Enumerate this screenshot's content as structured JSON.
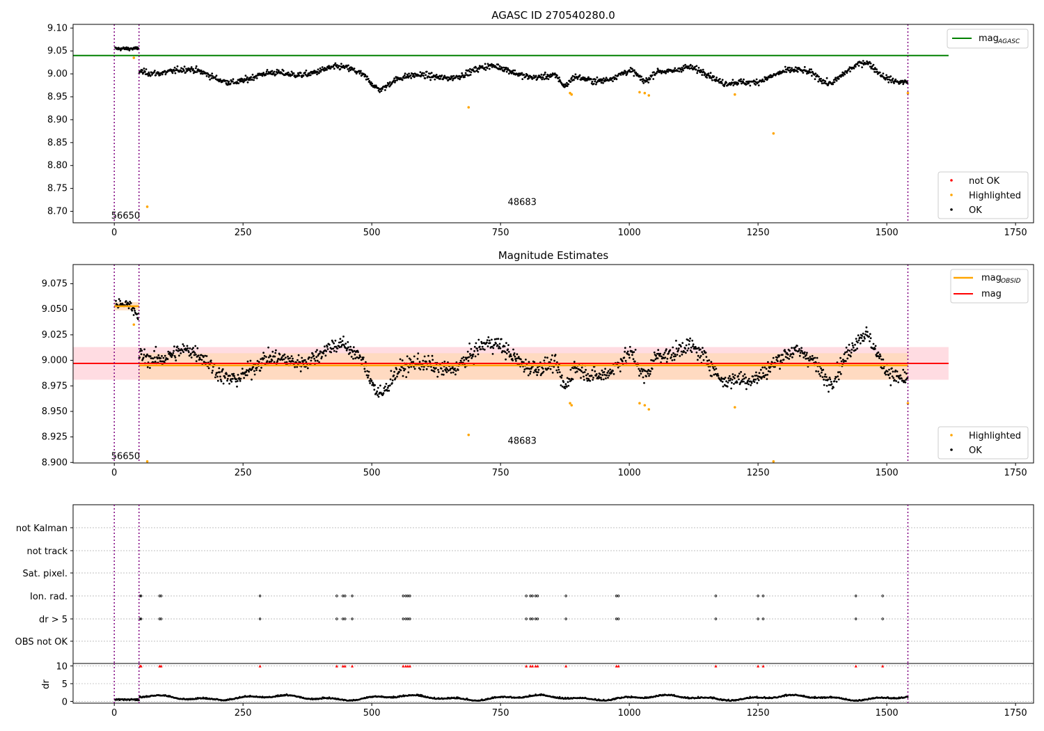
{
  "figure_title": "AGASC ID 270540280.0",
  "colors": {
    "agasc_line": "#008000",
    "obsid_line": "#ffa500",
    "mag_line": "#ff0000",
    "highlight": "#ffa500",
    "not_ok": "#ff0000",
    "ok": "#000000",
    "obs_boundary": "#800080",
    "mag_band": "#ffc0cb",
    "obsid_band": "#ffdab9"
  },
  "chart_data": [
    {
      "id": "agasc",
      "type": "scatter",
      "title": "AGASC ID 270540280.0",
      "xlim": [
        -80,
        1785
      ],
      "ylim": [
        8.675,
        9.108
      ],
      "xticks": [
        0,
        250,
        500,
        750,
        1000,
        1250,
        1500,
        1750
      ],
      "yticks": [
        8.7,
        8.75,
        8.8,
        8.85,
        8.9,
        8.95,
        9.0,
        9.05,
        9.1
      ],
      "ytick_labels": [
        "8.70",
        "8.75",
        "8.80",
        "8.85",
        "8.90",
        "8.95",
        "9.00",
        "9.05",
        "9.10"
      ],
      "obs_boundaries": [
        0,
        48,
        1541
      ],
      "obs_labels": [
        {
          "text": "56650",
          "x": 22,
          "y": 8.69
        },
        {
          "text": "48683",
          "x": 792,
          "y": 8.72
        }
      ],
      "agasc_line": {
        "y": 9.04,
        "x": [
          -80,
          1620
        ]
      },
      "highlighted": [
        [
          38,
          9.035
        ],
        [
          64,
          8.71
        ],
        [
          688,
          8.927
        ],
        [
          885,
          8.958
        ],
        [
          888,
          8.955
        ],
        [
          1020,
          8.96
        ],
        [
          1030,
          8.958
        ],
        [
          1038,
          8.953
        ],
        [
          1205,
          8.955
        ],
        [
          1280,
          8.87
        ],
        [
          1541,
          8.958
        ]
      ],
      "legend_top": [
        {
          "label": "mag",
          "sub": "AGASC"
        }
      ],
      "legend_bottom": [
        {
          "label": "not OK"
        },
        {
          "label": "Highlighted"
        },
        {
          "label": "OK"
        }
      ]
    },
    {
      "id": "mag",
      "type": "scatter",
      "title": "Magnitude Estimates",
      "xlim": [
        -80,
        1785
      ],
      "ylim": [
        8.8995,
        9.0938
      ],
      "xticks": [
        0,
        250,
        500,
        750,
        1000,
        1250,
        1500,
        1750
      ],
      "yticks": [
        8.9,
        8.925,
        8.95,
        8.975,
        9.0,
        9.025,
        9.05,
        9.075
      ],
      "ytick_labels": [
        "8.900",
        "8.925",
        "8.950",
        "8.975",
        "9.000",
        "9.025",
        "9.050",
        "9.075"
      ],
      "obs_boundaries": [
        0,
        48,
        1541
      ],
      "obs_labels": [
        {
          "text": "56650",
          "x": 22,
          "y": 8.906
        },
        {
          "text": "48683",
          "x": 792,
          "y": 8.921
        }
      ],
      "mag_line": {
        "y": 8.997,
        "x": [
          -80,
          1620
        ],
        "band": [
          8.981,
          9.013
        ]
      },
      "obsid_segments": [
        {
          "x": [
            0,
            48
          ],
          "y": 9.053,
          "band": [
            9.049,
            9.057
          ]
        },
        {
          "x": [
            48,
            1541
          ],
          "y": 8.995,
          "band": [
            8.981,
            9.007
          ]
        }
      ],
      "highlighted": [
        [
          38,
          9.035
        ],
        [
          64,
          8.901
        ],
        [
          688,
          8.927
        ],
        [
          885,
          8.958
        ],
        [
          888,
          8.956
        ],
        [
          1020,
          8.958
        ],
        [
          1030,
          8.956
        ],
        [
          1038,
          8.952
        ],
        [
          1205,
          8.954
        ],
        [
          1280,
          8.901
        ],
        [
          1541,
          8.958
        ]
      ],
      "legend_top": [
        {
          "label": "mag",
          "sub": "OBSID"
        },
        {
          "label": "mag"
        }
      ],
      "legend_bottom": [
        {
          "label": "Highlighted"
        },
        {
          "label": "OK"
        }
      ]
    },
    {
      "id": "flags",
      "type": "scatter",
      "xlim": [
        -80,
        1785
      ],
      "xticks": [
        0,
        250,
        500,
        750,
        1000,
        1250,
        1500,
        1750
      ],
      "flag_labels": [
        "not Kalman",
        "not track",
        "Sat. pixel.",
        "Ion. rad.",
        "dr > 5",
        "OBS not OK"
      ],
      "flag_x": [
        50,
        52,
        88,
        91,
        283,
        432,
        444,
        448,
        462,
        561,
        566,
        570,
        574,
        800,
        808,
        812,
        818,
        822,
        877,
        975,
        979,
        1168,
        1250,
        1260,
        1440,
        1492
      ],
      "flag_rows_with_events": [
        "Ion. rad.",
        "dr > 5"
      ],
      "obs_boundaries": [
        0,
        48,
        1541
      ]
    },
    {
      "id": "dr",
      "type": "scatter",
      "ylabel": "dr",
      "xlim": [
        -80,
        1785
      ],
      "ylim": [
        -0.5,
        10.7
      ],
      "yticks": [
        0,
        5,
        10
      ],
      "xticks": [
        0,
        250,
        500,
        750,
        1000,
        1250,
        1500,
        1750
      ],
      "clipped_markers_y": 10,
      "obs_boundaries": [
        0,
        48,
        1541
      ]
    }
  ]
}
